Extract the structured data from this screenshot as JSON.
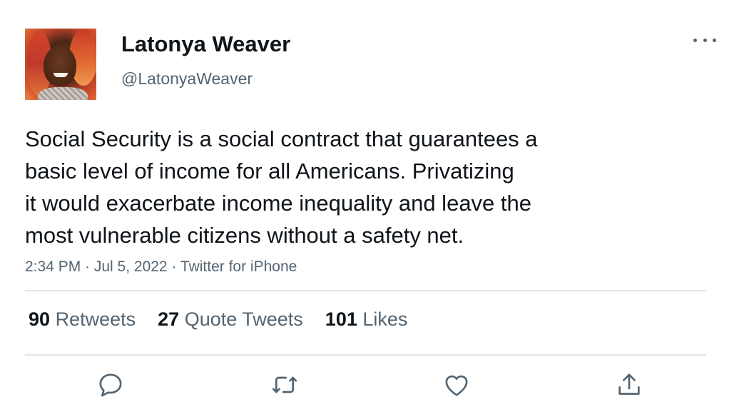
{
  "user": {
    "name": "Latonya Weaver",
    "handle": "@LatonyaWeaver"
  },
  "tweet": {
    "lines": [
      "Social Security is a social contract that guarantees a",
      "basic level of income for all Americans. Privatizing",
      "it would exacerbate income inequality and leave the",
      "most vulnerable citizens without a safety net."
    ],
    "meta": "2:34 PM · Jul 5, 2022 · Twitter for iPhone"
  },
  "stats": {
    "retweets": {
      "count": "90",
      "label": "Retweets"
    },
    "quotes": {
      "count": "27",
      "label": "Quote Tweets"
    },
    "likes": {
      "count": "101",
      "label": "Likes"
    }
  },
  "icons": {
    "more": "more-horizontal-icon",
    "reply": "reply-bubble-icon",
    "retweet": "retweet-arrows-icon",
    "like": "heart-icon",
    "share": "share-upload-icon"
  },
  "colors": {
    "text": "#0f1419",
    "secondary": "#536471",
    "divider": "#e1e4e8",
    "icon": "#536471"
  }
}
